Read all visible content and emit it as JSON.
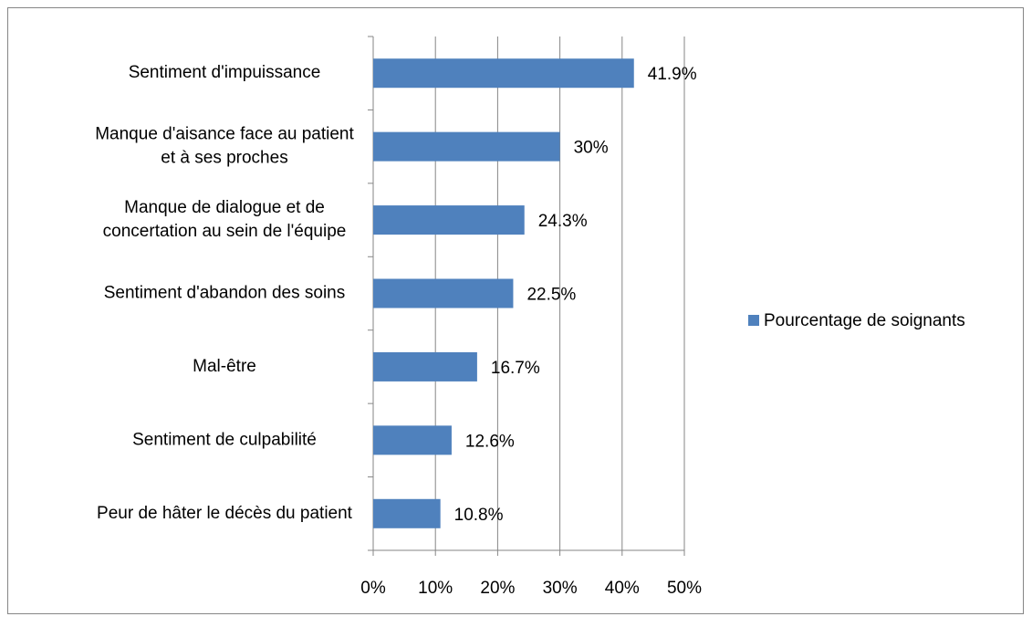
{
  "chart_data": {
    "type": "bar",
    "orientation": "horizontal",
    "categories": [
      "Sentiment d'impuissance",
      "Manque d'aisance face au patient et à ses proches",
      "Manque de dialogue et de concertation au sein de l'équipe",
      "Sentiment d'abandon des soins",
      "Mal-être",
      "Sentiment de culpabilité",
      "Peur de hâter le décès du patient"
    ],
    "series": [
      {
        "name": "Pourcentage de soignants",
        "color": "#4f81bd",
        "values": [
          41.9,
          30,
          24.3,
          22.5,
          16.7,
          12.6,
          10.8
        ],
        "value_labels": [
          "41.9%",
          "30%",
          "24.3%",
          "22.5%",
          "16.7%",
          "12.6%",
          "10.8%"
        ]
      }
    ],
    "xlim": [
      0,
      50
    ],
    "xticks": [
      {
        "value": 0,
        "label": "0%"
      },
      {
        "value": 10,
        "label": "10%"
      },
      {
        "value": 20,
        "label": "20%"
      },
      {
        "value": 30,
        "label": "30%"
      },
      {
        "value": 40,
        "label": "40%"
      },
      {
        "value": 50,
        "label": "50%"
      }
    ],
    "grid": true,
    "legend": "right"
  }
}
